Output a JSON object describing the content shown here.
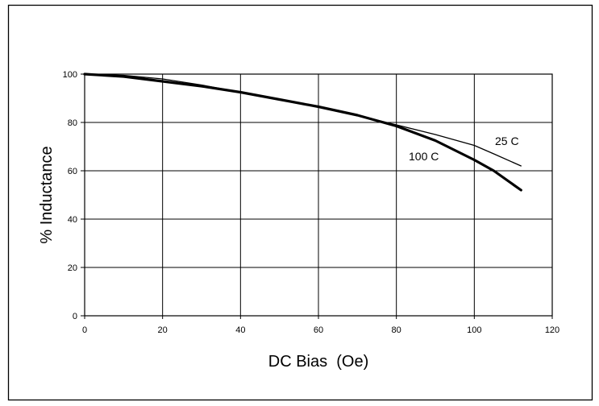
{
  "chart_data": {
    "type": "line",
    "title": "",
    "xlabel": "DC Bias  (Oe)",
    "ylabel": "% Inductance",
    "xlim": [
      0,
      120
    ],
    "ylim": [
      0,
      100
    ],
    "x_ticks": [
      0,
      20,
      40,
      60,
      80,
      100,
      120
    ],
    "y_ticks": [
      0,
      20,
      40,
      60,
      80,
      100
    ],
    "grid": true,
    "legend": "inline labels near curve ends",
    "series": [
      {
        "name": "25 C",
        "color": "#000000",
        "x": [
          0,
          10,
          20,
          30,
          40,
          50,
          60,
          70,
          80,
          90,
          100,
          105,
          112
        ],
        "y": [
          100,
          99.5,
          98,
          95.5,
          92.5,
          89.5,
          86.5,
          83,
          79,
          75,
          70.5,
          67,
          62
        ]
      },
      {
        "name": "100 C",
        "color": "#000000",
        "x": [
          0,
          10,
          20,
          30,
          40,
          50,
          60,
          70,
          80,
          90,
          100,
          105,
          112
        ],
        "y": [
          100,
          99,
          97,
          95,
          92.5,
          89.5,
          86.5,
          83,
          78.5,
          72.5,
          64.5,
          60,
          52
        ]
      }
    ]
  }
}
